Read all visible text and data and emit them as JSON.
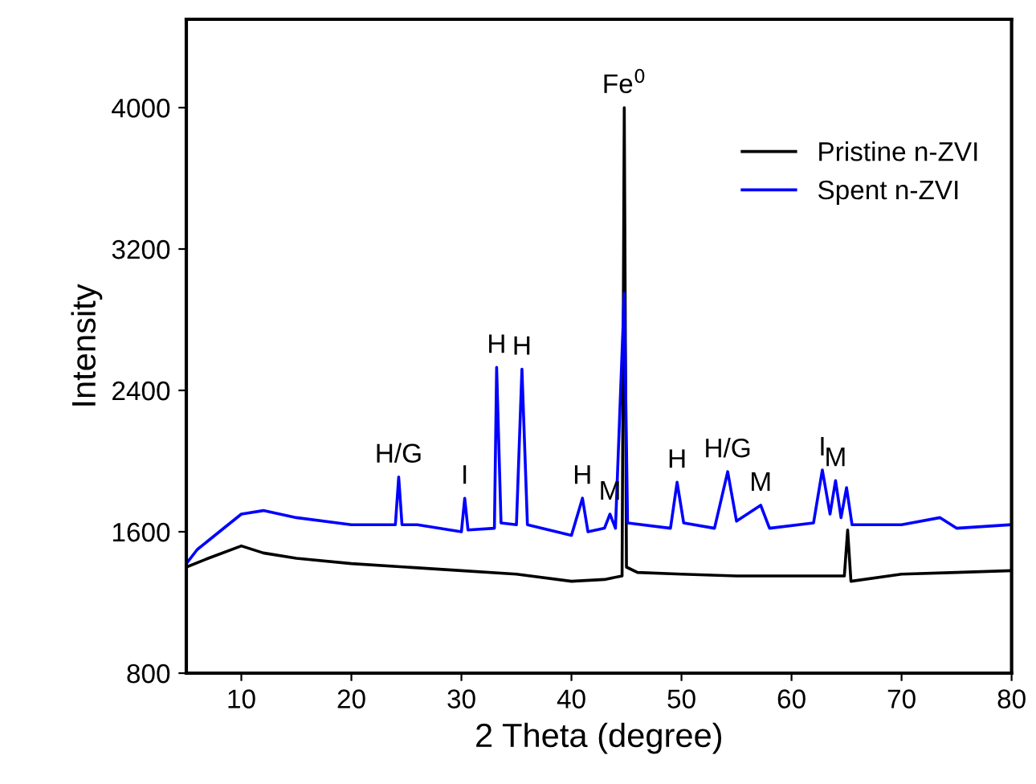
{
  "chart_data": {
    "type": "line",
    "xlabel": "2 Theta (degree)",
    "ylabel": "Intensity",
    "xlim": [
      5,
      80
    ],
    "ylim": [
      800,
      4500
    ],
    "xticks": [
      10,
      20,
      30,
      40,
      50,
      60,
      70,
      80
    ],
    "yticks": [
      800,
      1600,
      2400,
      3200,
      4000
    ],
    "grid": false,
    "legend": "top right",
    "marker": "none",
    "line_style": "solid",
    "series": [
      {
        "name": "Pristine n-ZVI",
        "color": "#000000",
        "x": [
          5,
          7,
          10,
          12,
          15,
          20,
          25,
          30,
          35,
          40,
          43,
          44.6,
          44.8,
          45.0,
          46,
          50,
          55,
          60,
          64.8,
          65.1,
          65.4,
          70,
          75,
          80
        ],
        "values": [
          1400,
          1450,
          1520,
          1480,
          1450,
          1420,
          1400,
          1380,
          1360,
          1320,
          1330,
          1350,
          4000,
          1400,
          1370,
          1360,
          1350,
          1350,
          1350,
          1610,
          1320,
          1360,
          1370,
          1380
        ]
      },
      {
        "name": "Spent n-ZVI",
        "color": "#0000ff",
        "x": [
          5,
          6,
          8,
          10,
          12,
          15,
          20,
          24,
          24.3,
          24.6,
          26,
          30,
          30.3,
          30.6,
          33,
          33.2,
          33.6,
          35,
          35.5,
          36,
          40,
          41,
          41.5,
          43,
          43.5,
          44,
          44.8,
          45.1,
          49,
          49.6,
          50.2,
          53,
          54.2,
          55,
          57.2,
          58,
          62,
          62.8,
          63.5,
          64,
          64.5,
          65,
          65.5,
          70,
          73.5,
          75,
          80
        ],
        "values": [
          1420,
          1500,
          1600,
          1700,
          1720,
          1680,
          1640,
          1640,
          1910,
          1640,
          1640,
          1600,
          1790,
          1610,
          1620,
          2530,
          1650,
          1640,
          2520,
          1640,
          1580,
          1790,
          1600,
          1620,
          1700,
          1620,
          2950,
          1650,
          1620,
          1880,
          1650,
          1620,
          1940,
          1660,
          1750,
          1620,
          1650,
          1950,
          1700,
          1890,
          1680,
          1850,
          1640,
          1640,
          1680,
          1620,
          1640
        ]
      }
    ],
    "annotations": [
      {
        "text": "H/G",
        "x": 24.3,
        "y": 1910
      },
      {
        "text": "I",
        "x": 30.3,
        "y": 1790
      },
      {
        "text": "H",
        "x": 33.2,
        "y": 2530
      },
      {
        "text": "H",
        "x": 35.5,
        "y": 2520
      },
      {
        "text": "H",
        "x": 41,
        "y": 1790
      },
      {
        "text": "M",
        "x": 43.5,
        "y": 1700
      },
      {
        "text": "Fe$^{0}$",
        "x": 44.8,
        "y": 4000
      },
      {
        "text": "H",
        "x": 49.6,
        "y": 1880
      },
      {
        "text": "H/G",
        "x": 54.2,
        "y": 1940
      },
      {
        "text": "M",
        "x": 57.2,
        "y": 1750
      },
      {
        "text": "I",
        "x": 62.8,
        "y": 1950
      },
      {
        "text": "M",
        "x": 64,
        "y": 1890
      }
    ]
  }
}
